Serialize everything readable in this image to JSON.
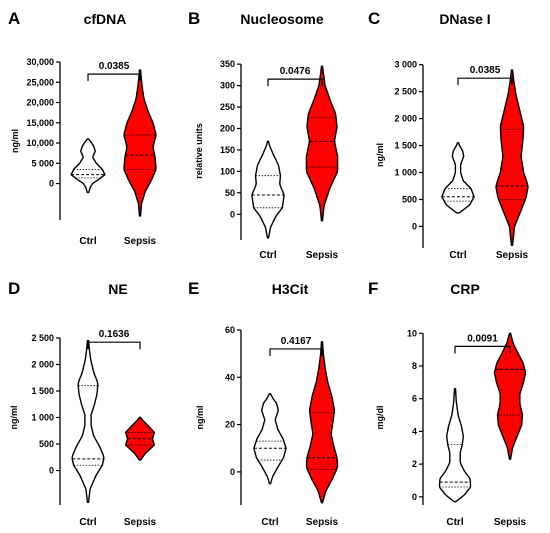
{
  "colors": {
    "sepsis_fill": "#ff0000",
    "ctrl_fill": "#ffffff",
    "stroke": "#000000"
  },
  "chart_data": [
    {
      "type": "violin",
      "letter": "A",
      "title": "cfDNA",
      "ylabel": "ng/ml",
      "ylim": [
        -9000,
        30000
      ],
      "yticks": [
        0,
        5000,
        10000,
        15000,
        20000,
        25000,
        30000
      ],
      "ytick_labels": [
        "0",
        "5 000",
        "10,000",
        "15,000",
        "20,000",
        "25,000",
        "30,000"
      ],
      "categories": [
        "Ctrl",
        "Sepsis"
      ],
      "pvalue": "0.0385",
      "bracket_y": 27000,
      "series": [
        {
          "category": "Ctrl",
          "fill": "white",
          "range": [
            -2200,
            11000
          ],
          "median": 2200,
          "quartiles": [
            1400,
            3500
          ],
          "shape": [
            [
              -2200,
              0.03
            ],
            [
              -1000,
              0.08
            ],
            [
              0,
              0.18
            ],
            [
              1200,
              0.45
            ],
            [
              2200,
              0.65
            ],
            [
              3500,
              0.55
            ],
            [
              5000,
              0.32
            ],
            [
              6500,
              0.18
            ],
            [
              8000,
              0.28
            ],
            [
              9200,
              0.22
            ],
            [
              10200,
              0.12
            ],
            [
              11000,
              0.02
            ]
          ]
        },
        {
          "category": "Sepsis",
          "fill": "red",
          "range": [
            -8000,
            28000
          ],
          "median": 7000,
          "quartiles": [
            3500,
            12000
          ],
          "shape": [
            [
              -8000,
              0.02
            ],
            [
              -5000,
              0.06
            ],
            [
              -2000,
              0.2
            ],
            [
              1000,
              0.45
            ],
            [
              3500,
              0.62
            ],
            [
              6500,
              0.58
            ],
            [
              9000,
              0.5
            ],
            [
              12000,
              0.62
            ],
            [
              15000,
              0.5
            ],
            [
              18000,
              0.3
            ],
            [
              21000,
              0.15
            ],
            [
              24000,
              0.08
            ],
            [
              28000,
              0.02
            ]
          ]
        }
      ]
    },
    {
      "type": "violin",
      "letter": "B",
      "title": "Nucleosome",
      "ylabel": "relative units",
      "ylim": [
        -60,
        355
      ],
      "yticks": [
        0,
        50,
        100,
        150,
        200,
        250,
        300,
        350
      ],
      "ytick_labels": [
        "0",
        "50",
        "100",
        "150",
        "200",
        "250",
        "300",
        "350"
      ],
      "categories": [
        "Ctrl",
        "Sepsis"
      ],
      "pvalue": "0.0476",
      "bracket_y": 315,
      "series": [
        {
          "category": "Ctrl",
          "fill": "white",
          "range": [
            -55,
            170
          ],
          "median": 45,
          "quartiles": [
            15,
            90
          ],
          "shape": [
            [
              -55,
              0.02
            ],
            [
              -30,
              0.1
            ],
            [
              -5,
              0.3
            ],
            [
              15,
              0.55
            ],
            [
              45,
              0.62
            ],
            [
              70,
              0.45
            ],
            [
              90,
              0.48
            ],
            [
              115,
              0.4
            ],
            [
              140,
              0.2
            ],
            [
              160,
              0.06
            ],
            [
              170,
              0.02
            ]
          ]
        },
        {
          "category": "Sepsis",
          "fill": "red",
          "range": [
            -15,
            345
          ],
          "median": 170,
          "quartiles": [
            110,
            225
          ],
          "shape": [
            [
              -15,
              0.02
            ],
            [
              20,
              0.08
            ],
            [
              60,
              0.3
            ],
            [
              100,
              0.6
            ],
            [
              135,
              0.6
            ],
            [
              170,
              0.48
            ],
            [
              205,
              0.58
            ],
            [
              235,
              0.52
            ],
            [
              265,
              0.32
            ],
            [
              300,
              0.12
            ],
            [
              330,
              0.05
            ],
            [
              345,
              0.02
            ]
          ]
        }
      ]
    },
    {
      "type": "violin",
      "letter": "C",
      "title": "DNase I",
      "ylabel": "ng/ml",
      "ylim": [
        -400,
        3050
      ],
      "yticks": [
        0,
        500,
        1000,
        1500,
        2000,
        2500,
        3000
      ],
      "ytick_labels": [
        "0",
        "500",
        "1 000",
        "1 500",
        "2 000",
        "2 500",
        "3 000"
      ],
      "categories": [
        "Ctrl",
        "Sepsis"
      ],
      "pvalue": "0.0385",
      "bracket_y": 2750,
      "series": [
        {
          "category": "Ctrl",
          "fill": "white",
          "range": [
            250,
            1550
          ],
          "median": 550,
          "quartiles": [
            470,
            700
          ],
          "shape": [
            [
              250,
              0.05
            ],
            [
              400,
              0.45
            ],
            [
              550,
              0.62
            ],
            [
              700,
              0.5
            ],
            [
              850,
              0.2
            ],
            [
              1000,
              0.1
            ],
            [
              1150,
              0.1
            ],
            [
              1300,
              0.22
            ],
            [
              1400,
              0.18
            ],
            [
              1500,
              0.06
            ],
            [
              1550,
              0.02
            ]
          ]
        },
        {
          "category": "Sepsis",
          "fill": "red",
          "range": [
            -350,
            2900
          ],
          "median": 750,
          "quartiles": [
            500,
            1800
          ],
          "shape": [
            [
              -350,
              0.02
            ],
            [
              0,
              0.1
            ],
            [
              300,
              0.35
            ],
            [
              550,
              0.55
            ],
            [
              750,
              0.62
            ],
            [
              1000,
              0.45
            ],
            [
              1300,
              0.35
            ],
            [
              1600,
              0.42
            ],
            [
              1850,
              0.45
            ],
            [
              2150,
              0.3
            ],
            [
              2450,
              0.15
            ],
            [
              2700,
              0.07
            ],
            [
              2900,
              0.02
            ]
          ]
        }
      ]
    },
    {
      "type": "violin",
      "letter": "D",
      "title": "NE",
      "ylabel": "ng/ml",
      "ylim": [
        -650,
        2650
      ],
      "yticks": [
        0,
        500,
        1000,
        1500,
        2000,
        2500
      ],
      "ytick_labels": [
        "0",
        "500",
        "1 000",
        "1 500",
        "2 000",
        "2 500"
      ],
      "categories": [
        "Ctrl",
        "Sepsis"
      ],
      "pvalue": "0.1636",
      "bracket_y": 2420,
      "series": [
        {
          "category": "Ctrl",
          "fill": "white",
          "range": [
            -600,
            2450
          ],
          "median": 220,
          "quartiles": [
            100,
            1600
          ],
          "shape": [
            [
              -600,
              0.02
            ],
            [
              -350,
              0.08
            ],
            [
              -100,
              0.3
            ],
            [
              100,
              0.55
            ],
            [
              250,
              0.62
            ],
            [
              450,
              0.45
            ],
            [
              650,
              0.22
            ],
            [
              850,
              0.12
            ],
            [
              1050,
              0.12
            ],
            [
              1250,
              0.25
            ],
            [
              1450,
              0.35
            ],
            [
              1650,
              0.38
            ],
            [
              1850,
              0.22
            ],
            [
              2100,
              0.1
            ],
            [
              2300,
              0.05
            ],
            [
              2450,
              0.02
            ]
          ]
        },
        {
          "category": "Sepsis",
          "fill": "red",
          "range": [
            200,
            1000
          ],
          "median": 600,
          "quartiles": [
            480,
            720
          ],
          "shape": [
            [
              200,
              0.03
            ],
            [
              320,
              0.2
            ],
            [
              480,
              0.55
            ],
            [
              600,
              0.48
            ],
            [
              720,
              0.55
            ],
            [
              850,
              0.3
            ],
            [
              950,
              0.1
            ],
            [
              1000,
              0.02
            ]
          ]
        }
      ]
    },
    {
      "type": "violin",
      "letter": "E",
      "title": "H3Cit",
      "ylabel": "ng/ml",
      "ylim": [
        -14,
        60
      ],
      "yticks": [
        0,
        20,
        40,
        60
      ],
      "ytick_labels": [
        "0",
        "20",
        "40",
        "60"
      ],
      "categories": [
        "Ctrl",
        "Sepsis"
      ],
      "pvalue": "0.4167",
      "bracket_y": 52,
      "series": [
        {
          "category": "Ctrl",
          "fill": "white",
          "range": [
            -5,
            33
          ],
          "median": 10,
          "quartiles": [
            5,
            13
          ],
          "shape": [
            [
              -5,
              0.02
            ],
            [
              -2,
              0.1
            ],
            [
              2,
              0.3
            ],
            [
              6,
              0.52
            ],
            [
              10,
              0.62
            ],
            [
              14,
              0.5
            ],
            [
              18,
              0.3
            ],
            [
              22,
              0.2
            ],
            [
              26,
              0.32
            ],
            [
              29,
              0.25
            ],
            [
              31,
              0.12
            ],
            [
              33,
              0.02
            ]
          ]
        },
        {
          "category": "Sepsis",
          "fill": "red",
          "range": [
            -13,
            55
          ],
          "median": 6,
          "quartiles": [
            1,
            25
          ],
          "shape": [
            [
              -13,
              0.02
            ],
            [
              -8,
              0.15
            ],
            [
              -3,
              0.4
            ],
            [
              2,
              0.6
            ],
            [
              6,
              0.58
            ],
            [
              11,
              0.45
            ],
            [
              16,
              0.35
            ],
            [
              21,
              0.42
            ],
            [
              26,
              0.48
            ],
            [
              32,
              0.38
            ],
            [
              38,
              0.22
            ],
            [
              44,
              0.12
            ],
            [
              50,
              0.05
            ],
            [
              55,
              0.02
            ]
          ]
        }
      ]
    },
    {
      "type": "violin",
      "letter": "F",
      "title": "CRP",
      "ylabel": "mg/dl",
      "ylim": [
        -0.5,
        10.2
      ],
      "yticks": [
        0,
        2,
        4,
        6,
        8,
        10
      ],
      "ytick_labels": [
        "0",
        "2",
        "4",
        "6",
        "8",
        "10"
      ],
      "categories": [
        "Ctrl",
        "Sepsis"
      ],
      "pvalue": "0.0091",
      "bracket_y": 9.2,
      "series": [
        {
          "category": "Ctrl",
          "fill": "white",
          "range": [
            -0.3,
            6.6
          ],
          "median": 0.9,
          "quartiles": [
            0.6,
            3.2
          ],
          "shape": [
            [
              -0.3,
              0.03
            ],
            [
              0.1,
              0.35
            ],
            [
              0.6,
              0.6
            ],
            [
              1.1,
              0.58
            ],
            [
              1.6,
              0.35
            ],
            [
              2.1,
              0.2
            ],
            [
              2.7,
              0.2
            ],
            [
              3.2,
              0.28
            ],
            [
              3.7,
              0.32
            ],
            [
              4.3,
              0.25
            ],
            [
              5.0,
              0.12
            ],
            [
              5.8,
              0.05
            ],
            [
              6.6,
              0.02
            ]
          ]
        },
        {
          "category": "Sepsis",
          "fill": "red",
          "range": [
            2.3,
            10
          ],
          "median": 7.8,
          "quartiles": [
            5.0,
            7.8
          ],
          "shape": [
            [
              2.3,
              0.02
            ],
            [
              3.0,
              0.1
            ],
            [
              3.8,
              0.3
            ],
            [
              4.4,
              0.45
            ],
            [
              5.0,
              0.48
            ],
            [
              5.7,
              0.38
            ],
            [
              6.3,
              0.38
            ],
            [
              7.0,
              0.52
            ],
            [
              7.6,
              0.6
            ],
            [
              8.2,
              0.5
            ],
            [
              8.8,
              0.3
            ],
            [
              9.4,
              0.12
            ],
            [
              10.0,
              0.02
            ]
          ]
        }
      ]
    }
  ]
}
